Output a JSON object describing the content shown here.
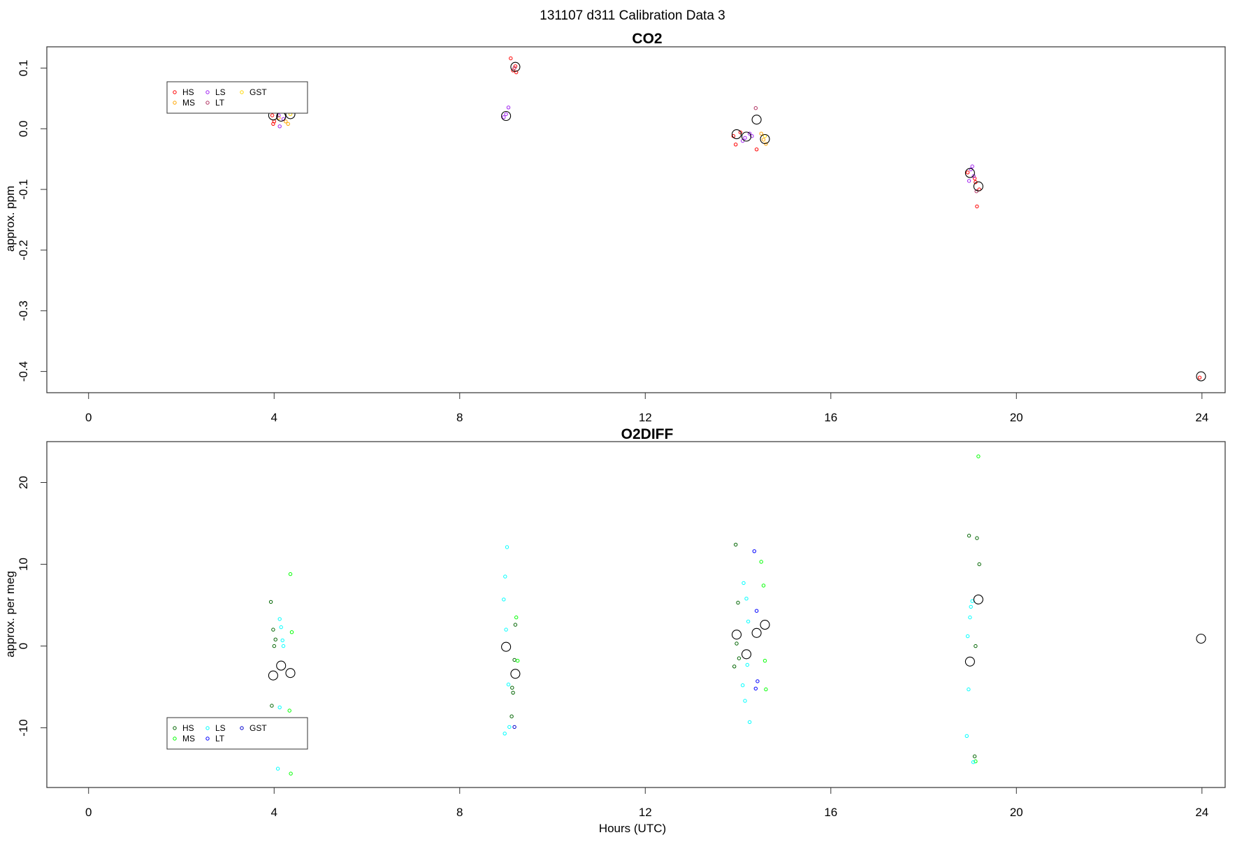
{
  "figure": {
    "title": "131107   d311   Calibration Data 3",
    "xlabel": "Hours (UTC)"
  },
  "chart_data": [
    {
      "type": "scatter",
      "title": "CO2",
      "xlabel": "",
      "ylabel": "approx. ppm",
      "xlim": [
        -0.9,
        24.5
      ],
      "ylim": [
        -0.435,
        0.135
      ],
      "xticks": [
        "0",
        "4",
        "8",
        "12",
        "16",
        "20",
        "24"
      ],
      "yticks": [
        "0.1",
        "0.0",
        "-0.1",
        "-0.2",
        "-0.3",
        "-0.4"
      ],
      "legend": {
        "placement": "top-left",
        "entries": [
          {
            "label": "HS",
            "color": "#ff0000"
          },
          {
            "label": "MS",
            "color": "#ffa500"
          },
          {
            "label": "LS",
            "color": "#a020f0"
          },
          {
            "label": "LT",
            "color": "#b03060"
          },
          {
            "label": "GST",
            "color": "#ffd700"
          }
        ]
      },
      "series": [
        {
          "name": "HS",
          "color": "#ff0000",
          "x": [
            3.96,
            4.0,
            3.98,
            9.1,
            9.2,
            9.15,
            9.22,
            13.9,
            13.95,
            14.05,
            14.4,
            18.95,
            19.1,
            19.15,
            19.2,
            19.12,
            23.95
          ],
          "y": [
            0.022,
            0.012,
            0.008,
            0.116,
            0.103,
            0.096,
            0.093,
            -0.012,
            -0.026,
            -0.006,
            -0.034,
            -0.072,
            -0.082,
            -0.128,
            -0.1,
            -0.088,
            -0.41
          ]
        },
        {
          "name": "MS",
          "color": "#ffa500",
          "x": [
            4.1,
            4.25,
            4.3,
            14.55,
            14.6,
            14.5
          ],
          "y": [
            0.018,
            0.012,
            0.008,
            -0.018,
            -0.025,
            -0.008
          ]
        },
        {
          "name": "LS",
          "color": "#a020f0",
          "x": [
            4.1,
            4.12,
            4.2,
            8.95,
            9.05,
            9.0,
            14.1,
            14.15,
            14.25,
            14.3,
            18.98,
            19.02,
            19.05,
            19.08
          ],
          "y": [
            0.022,
            0.004,
            0.016,
            0.019,
            0.035,
            0.024,
            -0.02,
            -0.015,
            -0.008,
            -0.012,
            -0.086,
            -0.067,
            -0.062,
            -0.078
          ]
        },
        {
          "name": "LT",
          "color": "#b03060",
          "x": [
            9.18,
            14.38,
            19.14
          ],
          "y": [
            0.1,
            0.034,
            -0.103
          ]
        },
        {
          "name": "GST",
          "color": "#ffd700",
          "x": [
            4.35,
            14.58
          ],
          "y": [
            0.024,
            -0.012
          ]
        },
        {
          "name": "mean",
          "color": "#000000",
          "x": [
            3.98,
            4.15,
            4.35,
            9.0,
            9.2,
            13.97,
            14.18,
            14.4,
            14.58,
            19.0,
            19.18,
            23.98
          ],
          "y": [
            0.022,
            0.02,
            0.024,
            0.021,
            0.102,
            -0.009,
            -0.013,
            0.015,
            -0.017,
            -0.073,
            -0.095,
            -0.408
          ]
        }
      ]
    },
    {
      "type": "scatter",
      "title": "O2DIFF",
      "xlabel": "Hours (UTC)",
      "ylabel": "approx. per meg",
      "xlim": [
        -0.9,
        24.5
      ],
      "ylim": [
        -17.3,
        25.0
      ],
      "xticks": [
        "0",
        "4",
        "8",
        "12",
        "16",
        "20",
        "24"
      ],
      "yticks": [
        "20",
        "10",
        "0",
        "-10"
      ],
      "legend": {
        "placement": "bottom-left",
        "entries": [
          {
            "label": "HS",
            "color": "#006400"
          },
          {
            "label": "MS",
            "color": "#00ff00"
          },
          {
            "label": "LS",
            "color": "#00ffff"
          },
          {
            "label": "LT",
            "color": "#0000ff"
          },
          {
            "label": "GST",
            "color": "#0000cd"
          }
        ]
      },
      "series": [
        {
          "name": "HS",
          "color": "#006400",
          "x": [
            3.93,
            3.98,
            4.03,
            4.0,
            3.95,
            9.12,
            9.18,
            9.2,
            9.15,
            9.13,
            13.95,
            14.0,
            13.92,
            13.97,
            14.02,
            18.98,
            19.15,
            19.2,
            19.12,
            19.1
          ],
          "y": [
            5.4,
            2.0,
            0.8,
            0.0,
            -7.3,
            -8.6,
            -1.7,
            2.6,
            -5.7,
            -5.1,
            12.4,
            5.3,
            -2.5,
            0.3,
            -1.5,
            13.5,
            13.2,
            10.0,
            0.0,
            -13.5
          ]
        },
        {
          "name": "MS",
          "color": "#00ff00",
          "x": [
            4.35,
            4.38,
            4.33,
            4.36,
            9.22,
            9.25,
            14.5,
            14.55,
            14.58,
            14.6,
            19.18,
            19.12
          ],
          "y": [
            8.8,
            1.7,
            -7.9,
            -15.6,
            3.5,
            -1.8,
            10.3,
            7.4,
            -1.8,
            -5.3,
            23.2,
            -14.1
          ]
        },
        {
          "name": "LS",
          "color": "#00ffff",
          "x": [
            4.12,
            4.15,
            4.18,
            4.2,
            4.12,
            4.08,
            9.02,
            8.98,
            8.95,
            9.0,
            9.05,
            8.97,
            9.07,
            14.12,
            14.18,
            14.22,
            14.2,
            14.1,
            14.15,
            14.25,
            18.95,
            19.02,
            19.05,
            19.0,
            18.97,
            18.93,
            19.07
          ],
          "y": [
            3.3,
            2.3,
            0.7,
            0.0,
            -7.5,
            -15.0,
            12.1,
            8.5,
            5.7,
            2.0,
            -4.7,
            -10.7,
            -9.9,
            7.7,
            5.8,
            3.0,
            -2.3,
            -4.8,
            -6.7,
            -9.3,
            1.2,
            4.8,
            5.5,
            3.5,
            -5.3,
            -11.0,
            -14.2
          ]
        },
        {
          "name": "LT",
          "color": "#0000ff",
          "x": [
            14.35,
            14.4,
            14.42,
            14.38
          ],
          "y": [
            11.6,
            4.3,
            -4.3,
            -5.2
          ]
        },
        {
          "name": "GST",
          "color": "#0000cd",
          "x": [
            9.18
          ],
          "y": [
            -9.9
          ]
        },
        {
          "name": "mean",
          "color": "#000000",
          "x": [
            3.98,
            4.15,
            4.35,
            9.0,
            9.2,
            13.97,
            14.18,
            14.4,
            14.58,
            19.0,
            19.18,
            23.98
          ],
          "y": [
            -3.6,
            -2.4,
            -3.3,
            -0.1,
            -3.4,
            1.4,
            -1.0,
            1.6,
            2.6,
            -1.9,
            5.7,
            0.9
          ]
        }
      ]
    }
  ]
}
